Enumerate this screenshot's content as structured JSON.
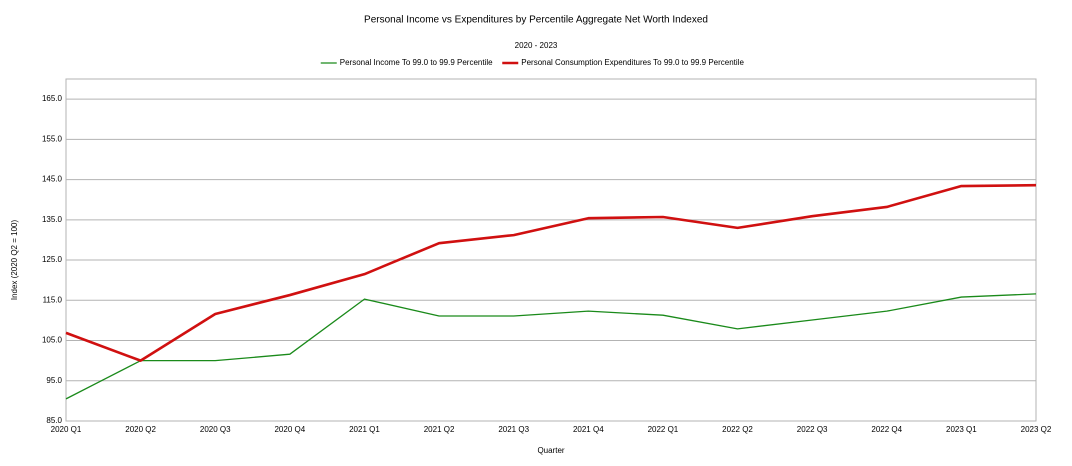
{
  "chart_data": {
    "type": "line",
    "title": "Personal Income vs Expenditures by Percentile Aggregate Net Worth Indexed",
    "subtitle": "2020 - 2023",
    "x_label": "Quarter",
    "y_label": "Index (2020 Q2 = 100)",
    "categories": [
      "2020 Q1",
      "2020 Q2",
      "2020 Q3",
      "2020 Q4",
      "2021 Q1",
      "2021 Q2",
      "2021 Q3",
      "2021 Q4",
      "2022 Q1",
      "2022 Q2",
      "2022 Q3",
      "2022 Q4",
      "2023 Q1",
      "2023 Q2"
    ],
    "series": [
      {
        "name": "Personal Income To 99.0 to 99.9 Percentile",
        "color": "#1a8a1a",
        "width": 1.3,
        "values": [
          90.5,
          100,
          100,
          101.6,
          115.3,
          111.1,
          111.1,
          112.3,
          111.3,
          107.9,
          110.1,
          112.3,
          115.8,
          116.6
        ]
      },
      {
        "name": "Personal Consumption Expenditures To 99.0 to 99.9 Percentile",
        "color": "#d01010",
        "width": 2.6,
        "values": [
          106.9,
          100,
          111.6,
          116.3,
          121.5,
          129.2,
          131.2,
          135.4,
          135.7,
          133,
          135.9,
          138.2,
          143.4,
          143.6
        ]
      }
    ],
    "ylim": [
      85,
      170
    ],
    "yticks": [
      {
        "value": 85,
        "label": "85.0"
      },
      {
        "value": 95,
        "label": "95.0"
      },
      {
        "value": 105,
        "label": "105.0"
      },
      {
        "value": 115,
        "label": "115.0"
      },
      {
        "value": 125,
        "label": "125.0"
      },
      {
        "value": 135,
        "label": "135.0"
      },
      {
        "value": 145,
        "label": "145.0"
      },
      {
        "value": 155,
        "label": "155.0"
      },
      {
        "value": 165,
        "label": "165.0"
      }
    ],
    "grid": true,
    "legend": "top"
  }
}
